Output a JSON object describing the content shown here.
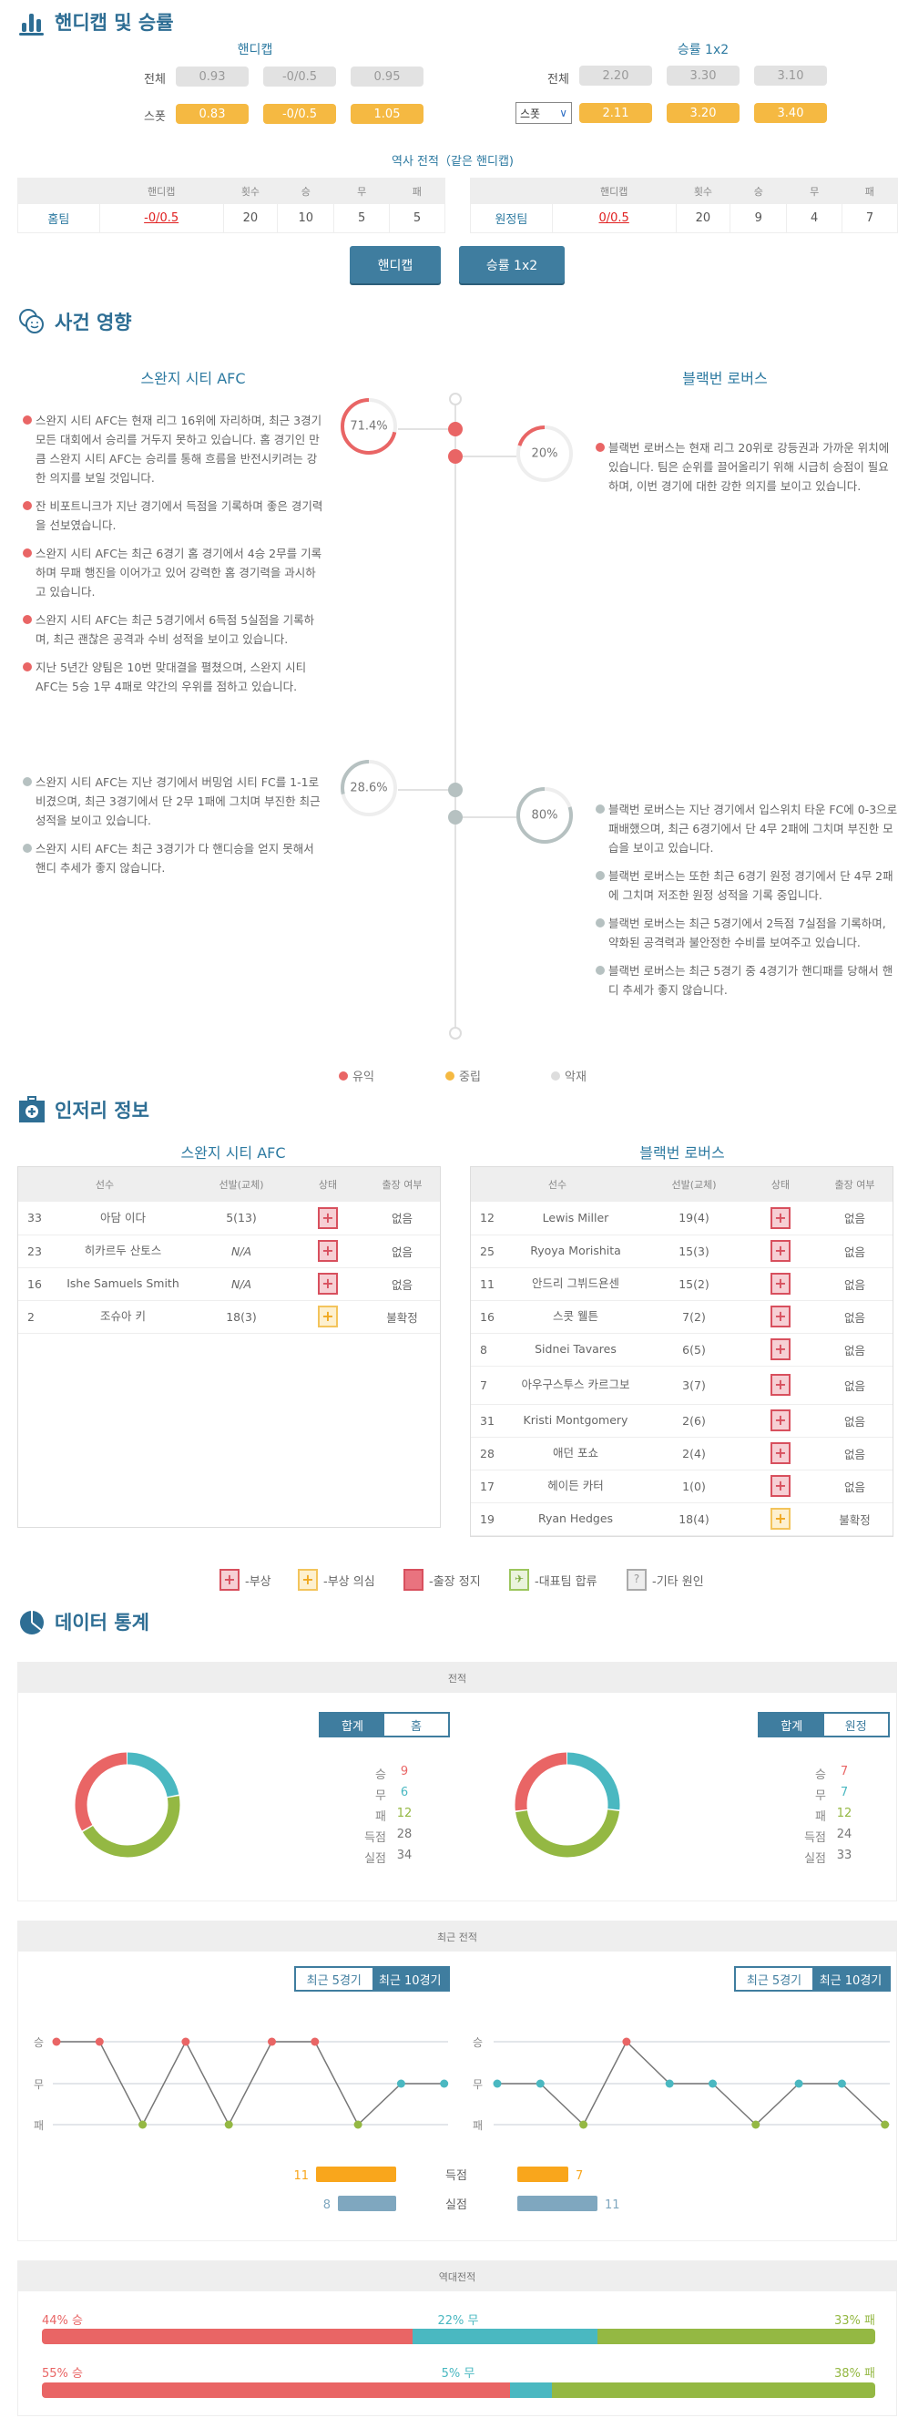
{
  "colors": {
    "accent": "#3f7d9f",
    "title": "#2e6e94",
    "win": "#e96565",
    "draw": "#4ab8c1",
    "loss": "#94b843",
    "neutral": "#f5b942",
    "bad": "#b6c1c1",
    "goals_for": "#f9a61c",
    "goals_against": "#7fa7bf"
  },
  "odds": {
    "title": "핸디캡 및 승률",
    "title_icon": "bar-chart-icon",
    "handicap": {
      "label": "핸디캡",
      "rows": [
        {
          "label": "전체",
          "values": [
            "0.93",
            "-0/0.5",
            "0.95"
          ]
        },
        {
          "label": "스폿",
          "values": [
            "0.83",
            "-0/0.5",
            "1.05"
          ]
        }
      ]
    },
    "win1x2": {
      "label": "승률 1x2",
      "rows": [
        {
          "label": "전체",
          "values": [
            "2.20",
            "3.30",
            "3.10"
          ]
        },
        {
          "label": "스폿",
          "values": [
            "2.11",
            "3.20",
            "3.40"
          ]
        }
      ]
    },
    "history_title": "역사 전적（같은 핸디캡)",
    "history_headers": [
      "",
      "핸디캡",
      "횟수",
      "승",
      "무",
      "패"
    ],
    "home_history": [
      "홈팀",
      "-0/0.5",
      "20",
      "10",
      "5",
      "5"
    ],
    "away_history": [
      "원정팀",
      "0/0.5",
      "20",
      "9",
      "4",
      "7"
    ],
    "buttons": [
      "핸디캡",
      "승률 1x2"
    ]
  },
  "impact": {
    "title": "사건 영향",
    "title_icon": "faces-icon",
    "home_team": "스완지 시티 AFC",
    "away_team": "블랙번 로버스",
    "home_positive_pct": "71.4%",
    "away_positive_pct": "20%",
    "home_negative_pct": "28.6%",
    "away_negative_pct": "80%",
    "home_positive_value": 71.4,
    "away_positive_value": 20,
    "home_negative_value": 28.6,
    "away_negative_value": 80,
    "home_positive": [
      "스완지 시티 AFC는 현재 리그 16위에 자리하며, 최근 3경기 모든 대회에서 승리를 거두지 못하고 있습니다. 홈 경기인 만큼 스완지 시티 AFC는 승리를 통해 흐름을 반전시키려는 강한 의지를 보일 것입니다.",
      "잔 비포트니크가 지난 경기에서 득점을 기록하며 좋은 경기력을 선보였습니다.",
      "스완지 시티 AFC는 최근 6경기 홈 경기에서 4승 2무를 기록하며 무패 행진을 이어가고 있어 강력한 홈 경기력을 과시하고 있습니다.",
      "스완지 시티 AFC는 최근 5경기에서 6득점 5실점을 기록하며, 최근 괜찮은 공격과 수비 성적을 보이고 있습니다.",
      "지난 5년간 양팀은 10번 맞대결을 펼쳤으며, 스완지 시티 AFC는 5승 1무 4패로 약간의 우위를 점하고 있습니다."
    ],
    "away_positive": [
      "블랙번 로버스는 현재 리그 20위로 강등권과 가까운 위치에 있습니다. 팀은 순위를 끌어올리기 위해 시급히 승점이 필요하며, 이번 경기에 대한 강한 의지를 보이고 있습니다."
    ],
    "home_negative": [
      "스완지 시티 AFC는 지난 경기에서 버밍엄 시티 FC를 1-1로 비겼으며, 최근 3경기에서 단 2무 1패에 그치며 부진한 최근 성적을 보이고 있습니다.",
      "스완지 시티 AFC는 최근 3경기가 다 핸디승을 얻지 못해서 핸디 추세가 좋지 않습니다."
    ],
    "away_negative": [
      "블랙번 로버스는 지난 경기에서 입스위치 타운 FC에 0-3으로 패배했으며, 최근 6경기에서 단 4무 2패에 그치며 부진한 모습을 보이고 있습니다.",
      "블랙번 로버스는 또한 최근 6경기 원정 경기에서 단 4무 2패에 그치며 저조한 원정 성적을 기록 중입니다.",
      "블랙번 로버스는 최근 5경기에서 2득점 7실점을 기록하며, 약화된 공격력과 불안정한 수비를 보여주고 있습니다.",
      "블랙번 로버스는 최근 5경기 중 4경기가 핸디패를 당해서 핸디 추세가 좋지 않습니다."
    ],
    "legend": [
      "유익",
      "중립",
      "악재"
    ]
  },
  "injury": {
    "title": "인저리 정보",
    "title_icon": "medical-kit-icon",
    "headers": [
      "선수",
      "선발(교체)",
      "상태",
      "출장 여부"
    ],
    "home_team": "스완지 시티 AFC",
    "away_team": "블랙번 로버스",
    "home_players": [
      [
        "33",
        "아담 이다",
        "5(13)",
        "injured",
        "없음"
      ],
      [
        "23",
        "히카르두 산토스",
        "N/A",
        "injured",
        "없음"
      ],
      [
        "16",
        "Ishe Samuels Smith",
        "N/A",
        "injured",
        "없음"
      ],
      [
        "2",
        "조슈아 키",
        "18(3)",
        "doubtful",
        "불확정"
      ]
    ],
    "away_players": [
      [
        "12",
        "Lewis Miller",
        "19(4)",
        "injured",
        "없음"
      ],
      [
        "25",
        "Ryoya Morishita",
        "15(3)",
        "injured",
        "없음"
      ],
      [
        "11",
        "안드리 그뷔드욘센",
        "15(2)",
        "injured",
        "없음"
      ],
      [
        "16",
        "스콧 웰튼",
        "7(2)",
        "injured",
        "없음"
      ],
      [
        "8",
        "Sidnei Tavares",
        "6(5)",
        "injured",
        "없음"
      ],
      [
        "7",
        "아우구스투스 카르그보",
        "3(7)",
        "injured",
        "없음"
      ],
      [
        "31",
        "Kristi Montgomery",
        "2(6)",
        "injured",
        "없음"
      ],
      [
        "28",
        "애던 포쇼",
        "2(4)",
        "injured",
        "없음"
      ],
      [
        "17",
        "헤이든 카터",
        "1(0)",
        "injured",
        "없음"
      ],
      [
        "19",
        "Ryan Hedges",
        "18(4)",
        "doubtful",
        "불확정"
      ]
    ],
    "legend": [
      "-부상",
      "-부상 의심",
      "-출장 정지",
      "-대표팀 합류",
      "-기타 원인"
    ]
  },
  "stats": {
    "title": "데이터 통계",
    "title_icon": "pie-chart-icon",
    "record": {
      "header": "전적",
      "home_toggle": [
        "합계",
        "홈"
      ],
      "away_toggle": [
        "합계",
        "원정"
      ],
      "labels": [
        "승",
        "무",
        "패",
        "득점",
        "실점"
      ],
      "home": [
        9,
        6,
        12,
        28,
        34
      ],
      "away": [
        7,
        7,
        12,
        24,
        33
      ]
    },
    "recent": {
      "header": "최근 전적",
      "toggle": [
        "최근 5경기",
        "최근 10경기"
      ],
      "y_labels": [
        "승",
        "무",
        "패"
      ],
      "home_form": [
        "W",
        "W",
        "L",
        "W",
        "L",
        "W",
        "W",
        "L",
        "D",
        "D"
      ],
      "away_form": [
        "D",
        "D",
        "L",
        "W",
        "D",
        "D",
        "L",
        "D",
        "D",
        "L"
      ],
      "goals_label": "득점",
      "conceded_label": "실점",
      "home_goals": 11,
      "home_conceded": 8,
      "away_goals": 7,
      "away_conceded": 11
    },
    "h2h": {
      "header": "역대전적",
      "rows": [
        {
          "win": 44,
          "draw": 22,
          "loss": 33,
          "win_label": "44% 승",
          "draw_label": "22% 무",
          "loss_label": "33% 패"
        },
        {
          "win": 55,
          "draw": 5,
          "loss": 38,
          "win_label": "55% 승",
          "draw_label": "5% 무",
          "loss_label": "38% 패"
        }
      ]
    }
  }
}
